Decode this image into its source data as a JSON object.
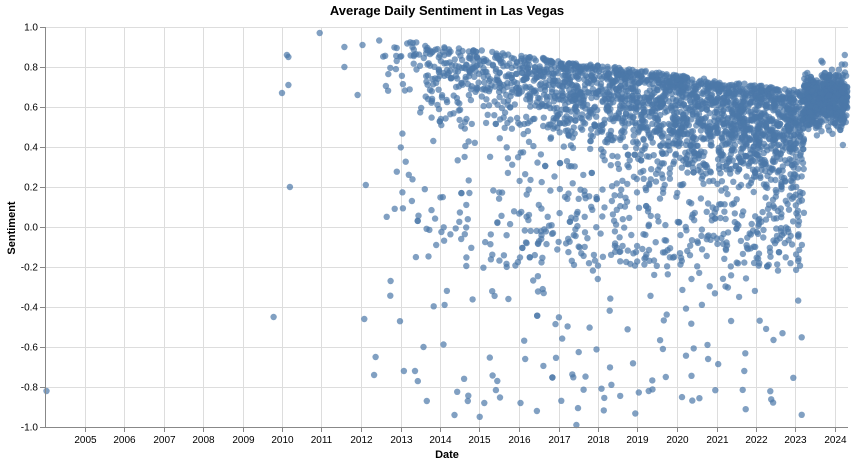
{
  "chart_data": {
    "type": "scatter",
    "title": "Average Daily Sentiment in Las Vegas",
    "xlabel": "Date",
    "ylabel": "Sentiment",
    "xlim": [
      "2004-01-01",
      "2024-05-01"
    ],
    "ylim": [
      -1.0,
      1.0
    ],
    "grid": true,
    "x_ticks": [
      "2005",
      "2006",
      "2007",
      "2008",
      "2009",
      "2010",
      "2011",
      "2012",
      "2013",
      "2014",
      "2015",
      "2016",
      "2017",
      "2018",
      "2019",
      "2020",
      "2021",
      "2022",
      "2023",
      "2024"
    ],
    "y_ticks": [
      "-1.0",
      "-0.8",
      "-0.6",
      "-0.4",
      "-0.2",
      "0.0",
      "0.2",
      "0.4",
      "0.6",
      "0.8",
      "1.0"
    ],
    "point_color": "#4c78a8",
    "points": [
      {
        "x": "2004-01-15",
        "y": -0.82
      },
      {
        "x": "2009-10-15",
        "y": -0.45
      },
      {
        "x": "2010-01-01",
        "y": 0.67
      },
      {
        "x": "2010-02-15",
        "y": 0.86
      },
      {
        "x": "2010-03-01",
        "y": 0.85
      },
      {
        "x": "2010-03-01",
        "y": 0.71
      },
      {
        "x": "2010-03-15",
        "y": 0.2
      },
      {
        "x": "2010-12-15",
        "y": 0.97
      },
      {
        "x": "2011-08-01",
        "y": 0.9
      },
      {
        "x": "2011-08-01",
        "y": 0.8
      },
      {
        "x": "2011-12-01",
        "y": 0.66
      },
      {
        "x": "2012-01-15",
        "y": 0.91
      },
      {
        "x": "2012-02-15",
        "y": 0.21
      },
      {
        "x": "2012-02-01",
        "y": -0.46
      },
      {
        "x": "2012-05-15",
        "y": -0.65
      },
      {
        "x": "2012-05-01",
        "y": -0.74
      },
      {
        "x": "2012-10-01",
        "y": -0.27
      },
      {
        "x": "2013-02-01",
        "y": -0.72
      },
      {
        "x": "2013-05-15",
        "y": -0.72
      },
      {
        "x": "2013-08-01",
        "y": -0.6
      },
      {
        "x": "2013-09-01",
        "y": -0.87
      },
      {
        "x": "2014-09-15",
        "y": -0.87
      },
      {
        "x": "2014-05-15",
        "y": -0.94
      },
      {
        "x": "2015-02-15",
        "y": -0.88
      },
      {
        "x": "2015-06-15",
        "y": -0.77
      },
      {
        "x": "2016-01-15",
        "y": -0.88
      },
      {
        "x": "2016-06-15",
        "y": -0.92
      },
      {
        "x": "2017-06-15",
        "y": -0.99
      },
      {
        "x": "2019-04-15",
        "y": -0.82
      },
      {
        "x": "2020-02-15",
        "y": -0.17
      },
      {
        "x": "2020-05-15",
        "y": -0.26
      },
      {
        "x": "2021-12-15",
        "y": -0.18
      },
      {
        "x": "2024-04-01",
        "y": 0.86
      },
      {
        "x": "2024-03-15",
        "y": 0.41
      }
    ]
  }
}
